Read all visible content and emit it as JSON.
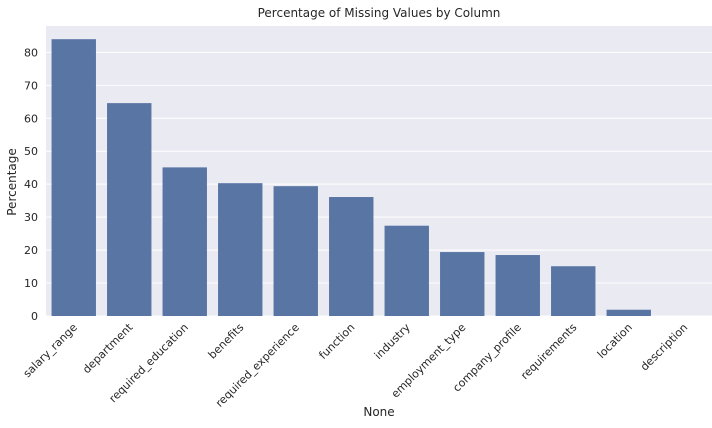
{
  "chart_data": {
    "type": "bar",
    "title": "Percentage of Missing Values by Column",
    "xlabel": "None",
    "ylabel": "Percentage",
    "categories": [
      "salary_range",
      "department",
      "required_education",
      "benefits",
      "required_experience",
      "function",
      "industry",
      "employment_type",
      "company_profile",
      "requirements",
      "location",
      "description"
    ],
    "values": [
      84.0,
      64.6,
      45.1,
      40.3,
      39.4,
      36.1,
      27.4,
      19.4,
      18.5,
      15.1,
      1.9,
      0.0
    ],
    "ylim": [
      0,
      88
    ],
    "yticks": [
      0,
      10,
      20,
      30,
      40,
      50,
      60,
      70,
      80
    ],
    "grid": true,
    "legend": "none",
    "colors": {
      "bar": "#5975a4",
      "background": "#eaeaf2",
      "grid": "#ffffff"
    }
  }
}
